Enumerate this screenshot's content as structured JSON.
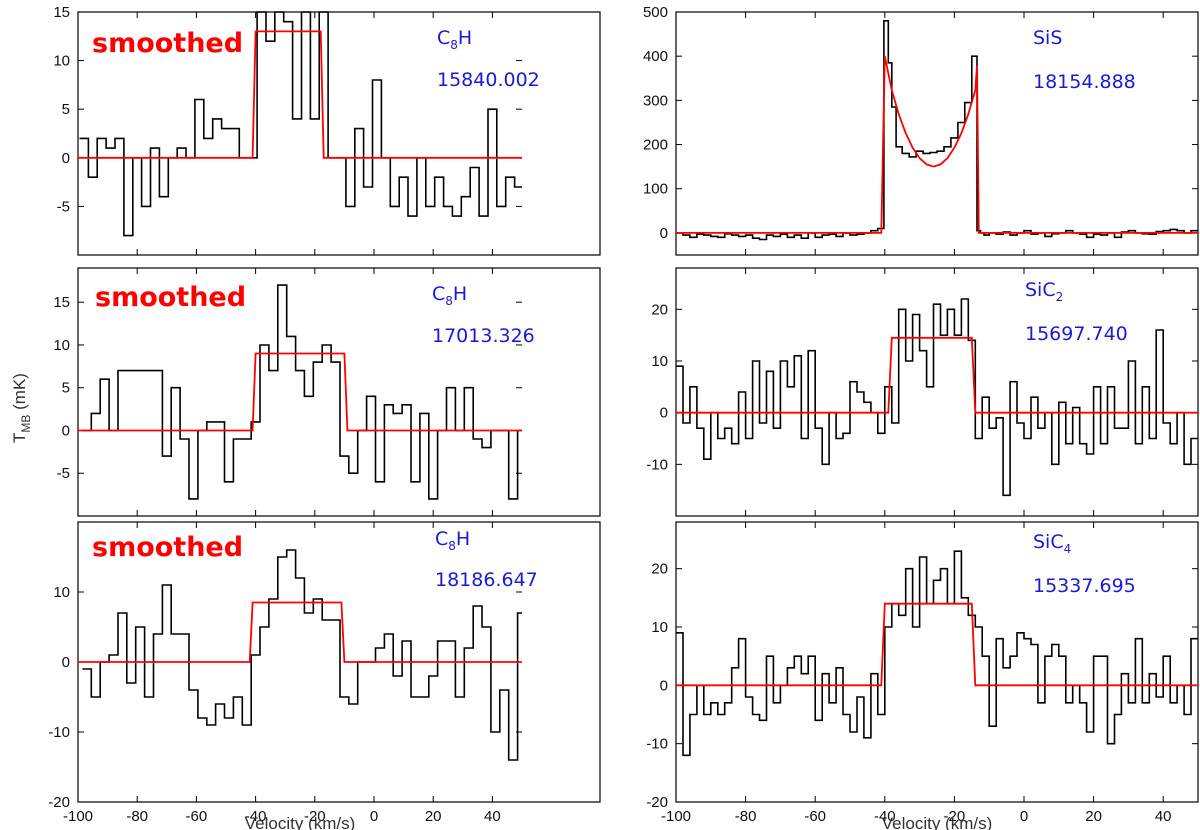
{
  "figure": {
    "ylabel_main": "T",
    "ylabel_sub": "MB",
    "ylabel_unit": " (mK)",
    "xlabel": "Velocity (km/s)",
    "colors": {
      "data": "#000000",
      "fit": "#ff0000",
      "label": "#1a1ad6",
      "smoothed": "#ff0000"
    }
  },
  "chart_data": [
    {
      "type": "line",
      "step": true,
      "id": "p-c8h-1",
      "title": "C8H 15840.002",
      "molecule": "C",
      "molecule_sub": "8",
      "molecule_tail": "H",
      "frequency": "15840.002",
      "smoothed_label": "smoothed",
      "xlim": [
        -100,
        50
      ],
      "ylim": [
        -10,
        15
      ],
      "xlabel": "",
      "xticks": [],
      "yticks": [
        -5,
        0,
        5,
        10,
        15
      ],
      "x": [
        -98,
        -95,
        -92,
        -89,
        -86,
        -83,
        -80,
        -77,
        -74,
        -71,
        -68,
        -65,
        -62,
        -59,
        -56,
        -53,
        -50,
        -47,
        -44,
        -41,
        -38,
        -35,
        -32,
        -29,
        -26,
        -23,
        -20,
        -17,
        -14,
        -11,
        -8,
        -5,
        -2,
        1,
        4,
        7,
        10,
        13,
        16,
        19,
        22,
        25,
        28,
        31,
        34,
        37,
        40,
        43,
        46,
        49
      ],
      "y": [
        2,
        -2,
        2,
        1,
        2,
        -8,
        0,
        -5,
        1,
        -4,
        0,
        1,
        0,
        6,
        2,
        4,
        3,
        3,
        0,
        0,
        15,
        12,
        16,
        14,
        4,
        15,
        4,
        15,
        0,
        0,
        -5,
        3,
        -3,
        8,
        0,
        -5,
        -2,
        -6,
        0,
        -5,
        -2,
        -5,
        -6,
        -4,
        -1,
        -6,
        5,
        -5,
        -2,
        -3
      ],
      "fit": {
        "x": [
          -100,
          -41,
          -40,
          -18,
          -17,
          50
        ],
        "y": [
          0,
          0,
          13,
          13,
          0,
          0
        ]
      }
    },
    {
      "type": "line",
      "step": true,
      "id": "p-c8h-2",
      "title": "C8H 17013.326",
      "molecule": "C",
      "molecule_sub": "8",
      "molecule_tail": "H",
      "frequency": "17013.326",
      "smoothed_label": "smoothed",
      "xlim": [
        -100,
        50
      ],
      "ylim": [
        -10,
        19
      ],
      "xlabel": "",
      "xticks": [],
      "yticks": [
        -5,
        0,
        5,
        10,
        15
      ],
      "x": [
        -97,
        -94,
        -91,
        -88,
        -85,
        -82,
        -79,
        -76,
        -73,
        -70,
        -67,
        -64,
        -61,
        -58,
        -55,
        -52,
        -49,
        -46,
        -43,
        -40,
        -37,
        -34,
        -31,
        -28,
        -25,
        -22,
        -19,
        -16,
        -13,
        -10,
        -7,
        -4,
        -1,
        2,
        5,
        8,
        11,
        14,
        17,
        20,
        23,
        26,
        29,
        32,
        35,
        38,
        41,
        44,
        47,
        50
      ],
      "y": [
        0,
        2,
        6,
        0,
        7,
        7,
        7,
        7,
        7,
        -3,
        5,
        -1,
        -8,
        0,
        1,
        1,
        -6,
        -1,
        -1,
        1,
        10,
        7,
        17,
        11,
        7,
        4,
        8,
        10,
        8,
        -3,
        -5,
        0,
        4,
        -6,
        3,
        2,
        3,
        -6,
        2,
        -8,
        0,
        5,
        0,
        5,
        -1,
        -2,
        0,
        0,
        -8,
        0
      ],
      "fit": {
        "x": [
          -100,
          -41,
          -40,
          -10,
          -9,
          50
        ],
        "y": [
          0,
          0,
          9,
          9,
          0,
          0
        ]
      }
    },
    {
      "type": "line",
      "step": true,
      "id": "p-c8h-3",
      "title": "C8H 18186.647",
      "molecule": "C",
      "molecule_sub": "8",
      "molecule_tail": "H",
      "frequency": "18186.647",
      "smoothed_label": "smoothed",
      "xlim": [
        -100,
        50
      ],
      "ylim": [
        -20,
        20
      ],
      "xlabel": "Velocity (km/s)",
      "xticks": [
        -100,
        -80,
        -60,
        -40,
        -20,
        0,
        20,
        40
      ],
      "yticks": [
        -20,
        -10,
        0,
        10
      ],
      "x": [
        -97,
        -94,
        -91,
        -88,
        -85,
        -82,
        -79,
        -76,
        -73,
        -70,
        -67,
        -64,
        -61,
        -58,
        -55,
        -52,
        -49,
        -46,
        -43,
        -40,
        -37,
        -34,
        -31,
        -28,
        -25,
        -22,
        -19,
        -16,
        -13,
        -10,
        -7,
        -4,
        -1,
        2,
        5,
        8,
        11,
        14,
        17,
        20,
        23,
        26,
        29,
        32,
        35,
        38,
        41,
        44,
        47,
        50
      ],
      "y": [
        -1,
        -5,
        0,
        1,
        7,
        -3,
        5,
        -5,
        4,
        11,
        4,
        4,
        -4,
        -8,
        -9,
        -6,
        -8,
        -5,
        -9,
        1,
        5,
        9,
        15,
        16,
        12,
        7,
        9,
        6,
        6,
        -5,
        -6,
        0,
        0,
        2,
        4,
        -2,
        3,
        -5,
        -5,
        -2,
        3,
        3,
        -5,
        2,
        8,
        5,
        -10,
        -4,
        -14,
        7
      ],
      "fit": {
        "x": [
          -100,
          -42,
          -41,
          -11,
          -10,
          50
        ],
        "y": [
          0,
          0,
          8.5,
          8.5,
          0,
          0
        ]
      }
    },
    {
      "type": "line",
      "step": true,
      "id": "p-sis",
      "title": "SiS 18154.888",
      "molecule": "SiS",
      "molecule_sub": "",
      "molecule_tail": "",
      "frequency": "18154.888",
      "smoothed_label": "",
      "xlim": [
        -100,
        50
      ],
      "ylim": [
        -50,
        500
      ],
      "xlabel": "",
      "xticks": [],
      "yticks": [
        0,
        100,
        200,
        300,
        400,
        500
      ],
      "x": [
        -99,
        -97,
        -95,
        -93,
        -91,
        -89,
        -87,
        -85,
        -83,
        -81,
        -79,
        -77,
        -75,
        -73,
        -71,
        -69,
        -67,
        -65,
        -63,
        -61,
        -59,
        -57,
        -55,
        -53,
        -51,
        -49,
        -47,
        -45,
        -43,
        -41,
        -39.5,
        -38.5,
        -37.5,
        -36,
        -34,
        -32,
        -30,
        -28,
        -26,
        -24,
        -22,
        -20,
        -18,
        -16,
        -14,
        -13,
        -12,
        -11,
        -9,
        -7,
        -5,
        -3,
        -1,
        1,
        3,
        5,
        7,
        9,
        11,
        13,
        15,
        17,
        19,
        21,
        23,
        25,
        27,
        29,
        31,
        33,
        35,
        37,
        39,
        41,
        43,
        45,
        47,
        49
      ],
      "y": [
        0,
        -5,
        -10,
        -3,
        -5,
        -8,
        -10,
        -2,
        -5,
        -8,
        -5,
        -12,
        -15,
        -5,
        -8,
        -3,
        -10,
        -5,
        -12,
        0,
        -10,
        -5,
        -3,
        -8,
        0,
        -5,
        -3,
        0,
        5,
        10,
        480,
        385,
        285,
        195,
        180,
        172,
        185,
        180,
        182,
        185,
        195,
        215,
        250,
        295,
        400,
        5,
        0,
        -5,
        0,
        -3,
        2,
        -5,
        0,
        5,
        -3,
        0,
        -8,
        -2,
        0,
        5,
        0,
        -3,
        -10,
        -3,
        -5,
        0,
        -10,
        2,
        5,
        0,
        -2,
        -3,
        3,
        5,
        8,
        5,
        0,
        5
      ],
      "fit": {
        "x": [
          -100,
          -41,
          -40,
          -38,
          -36,
          -34,
          -32,
          -30,
          -28,
          -26,
          -24,
          -22,
          -20,
          -18,
          -16,
          -14,
          -13.5,
          -13,
          50
        ],
        "y": [
          0,
          0,
          400,
          323,
          269,
          226,
          193,
          169,
          155,
          150,
          155,
          169,
          193,
          226,
          269,
          323,
          378,
          0,
          0
        ]
      }
    },
    {
      "type": "line",
      "step": true,
      "id": "p-sic2",
      "title": "SiC2 15697.740",
      "molecule": "SiC",
      "molecule_sub": "2",
      "molecule_tail": "",
      "frequency": "15697.740",
      "smoothed_label": "",
      "xlim": [
        -100,
        50
      ],
      "ylim": [
        -20,
        28
      ],
      "xlabel": "",
      "xticks": [],
      "yticks": [
        -10,
        0,
        10,
        20
      ],
      "x": [
        -99,
        -97,
        -95,
        -93,
        -91,
        -89,
        -87,
        -85,
        -83,
        -81,
        -79,
        -77,
        -75,
        -73,
        -71,
        -69,
        -67,
        -65,
        -63,
        -61,
        -59,
        -57,
        -55,
        -53,
        -51,
        -49,
        -47,
        -45,
        -43,
        -41,
        -39,
        -37,
        -35,
        -33,
        -31,
        -29,
        -27,
        -25,
        -23,
        -21,
        -19,
        -17,
        -15,
        -13,
        -11,
        -9,
        -7,
        -5,
        -3,
        -1,
        1,
        3,
        5,
        7,
        9,
        11,
        13,
        15,
        17,
        19,
        21,
        23,
        25,
        27,
        29,
        31,
        33,
        35,
        37,
        39,
        41,
        43,
        45,
        47,
        49
      ],
      "y": [
        9,
        -2,
        5,
        -3,
        -9,
        0,
        -5,
        -3,
        -6,
        4,
        -5,
        10,
        -2,
        8,
        -3,
        10,
        5,
        11,
        -5,
        12,
        -3,
        -10,
        0,
        -5,
        -4,
        6,
        4,
        2,
        0,
        -4,
        5,
        -2,
        20,
        10,
        19,
        12,
        5,
        21,
        15,
        20,
        15,
        22,
        14,
        -5,
        3,
        -3,
        -1,
        -16,
        6,
        -2,
        -5,
        3,
        -3,
        0,
        -10,
        2,
        -6,
        1,
        -6,
        -8,
        5,
        -6,
        5,
        -3,
        -3,
        10,
        -6,
        5,
        -5,
        16,
        -2,
        -6,
        0,
        -10,
        -5
      ],
      "fit": {
        "x": [
          -100,
          -39,
          -38,
          -15,
          -14,
          50
        ],
        "y": [
          0,
          0,
          14.5,
          14.5,
          0,
          0
        ]
      }
    },
    {
      "type": "line",
      "step": true,
      "id": "p-sic4",
      "title": "SiC4 15337.695",
      "molecule": "SiC",
      "molecule_sub": "4",
      "molecule_tail": "",
      "frequency": "15337.695",
      "smoothed_label": "",
      "xlim": [
        -100,
        50
      ],
      "ylim": [
        -20,
        28
      ],
      "xlabel": "Velocity (km/s)",
      "xticks": [
        -100,
        -80,
        -60,
        -40,
        -20,
        0,
        20,
        40
      ],
      "yticks": [
        -20,
        -10,
        0,
        10,
        20
      ],
      "x": [
        -99,
        -97,
        -95,
        -93,
        -91,
        -89,
        -87,
        -85,
        -83,
        -81,
        -79,
        -77,
        -75,
        -73,
        -71,
        -69,
        -67,
        -65,
        -63,
        -61,
        -59,
        -57,
        -55,
        -53,
        -51,
        -49,
        -47,
        -45,
        -43,
        -41,
        -39,
        -37,
        -35,
        -33,
        -31,
        -29,
        -27,
        -25,
        -23,
        -21,
        -19,
        -17,
        -15,
        -13,
        -11,
        -9,
        -7,
        -5,
        -3,
        -1,
        1,
        3,
        5,
        7,
        9,
        11,
        13,
        15,
        17,
        19,
        21,
        23,
        25,
        27,
        29,
        31,
        33,
        35,
        37,
        39,
        41,
        43,
        45,
        47,
        49
      ],
      "y": [
        9,
        -12,
        -5,
        0,
        -5,
        -3,
        -5,
        -3,
        3,
        8,
        -2,
        -5,
        -6,
        5,
        -3,
        0,
        3,
        5,
        2,
        5,
        -6,
        2,
        -3,
        3,
        -5,
        -8,
        -2,
        -9,
        2,
        -5,
        10,
        14,
        12,
        20,
        10,
        22,
        14,
        18,
        20,
        14,
        23,
        15,
        12,
        10,
        5,
        -7,
        8,
        3,
        5,
        9,
        8,
        7,
        -3,
        5,
        7,
        5,
        -3,
        0,
        -3,
        -8,
        5,
        5,
        -10,
        -5,
        2,
        -3,
        8,
        -3,
        2,
        -2,
        5,
        -3,
        0,
        -5,
        8
      ],
      "fit": {
        "x": [
          -100,
          -41,
          -40,
          -15,
          -14,
          50
        ],
        "y": [
          0,
          0,
          14,
          14,
          0,
          0
        ]
      }
    }
  ]
}
